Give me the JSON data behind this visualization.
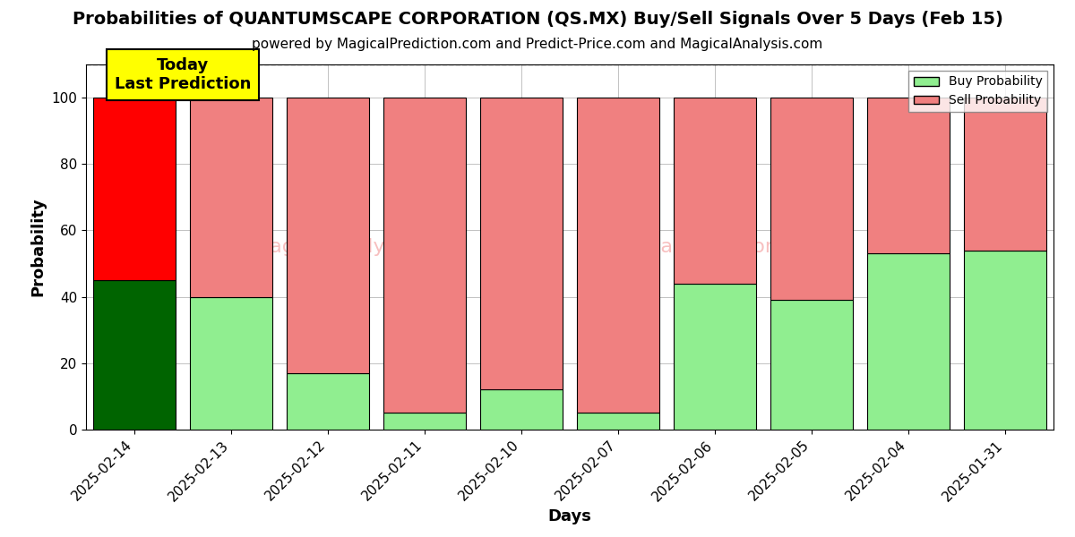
{
  "title": "Probabilities of QUANTUMSCAPE CORPORATION (QS.MX) Buy/Sell Signals Over 5 Days (Feb 15)",
  "subtitle": "powered by MagicalPrediction.com and Predict-Price.com and MagicalAnalysis.com",
  "xlabel": "Days",
  "ylabel": "Probability",
  "categories": [
    "2025-02-14",
    "2025-02-13",
    "2025-02-12",
    "2025-02-11",
    "2025-02-10",
    "2025-02-07",
    "2025-02-06",
    "2025-02-05",
    "2025-02-04",
    "2025-01-31"
  ],
  "buy_values": [
    45,
    40,
    17,
    5,
    12,
    5,
    44,
    39,
    53,
    54
  ],
  "sell_values": [
    55,
    60,
    83,
    95,
    88,
    95,
    56,
    61,
    47,
    46
  ],
  "today_bar_buy_color": "#006400",
  "today_bar_sell_color": "#FF0000",
  "other_bar_buy_color": "#90EE90",
  "other_bar_sell_color": "#F08080",
  "today_label": "Today\nLast Prediction",
  "today_label_bg": "#FFFF00",
  "legend_buy_label": "Buy Probability",
  "legend_sell_label": "Sell Probability",
  "ylim": [
    0,
    110
  ],
  "dashed_line_y": 110,
  "grid_color": "#aaaaaa",
  "title_fontsize": 14,
  "subtitle_fontsize": 11,
  "axis_label_fontsize": 13,
  "tick_fontsize": 11,
  "bg_color": "#ffffff",
  "plot_bg_color": "#ffffff",
  "bar_width": 0.85
}
